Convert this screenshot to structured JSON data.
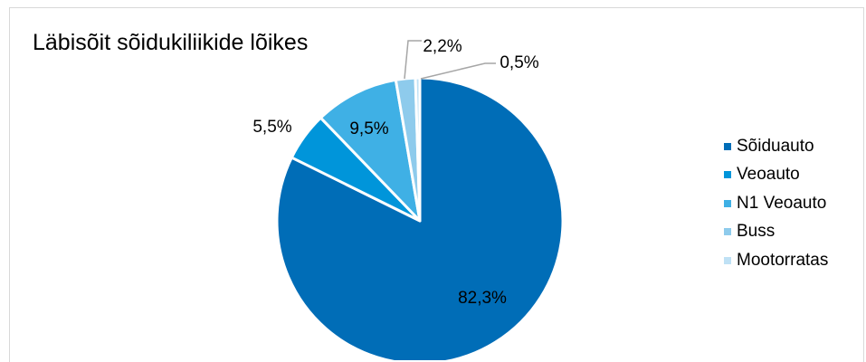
{
  "chart_data": {
    "type": "pie",
    "title": "Läbisõit sõidukiliikide lõikes",
    "categories": [
      "Sõiduauto",
      "Veoauto",
      "N1 Veoauto",
      "Buss",
      "Mootorratas"
    ],
    "values": [
      82.3,
      5.5,
      9.5,
      2.2,
      0.5
    ],
    "data_labels": [
      "82,3%",
      "5,5%",
      "9,5%",
      "2,2%",
      "0,5%"
    ],
    "colors": [
      "#006db7",
      "#0095da",
      "#3fb0e5",
      "#8ecbec",
      "#bfe1f5"
    ],
    "legend_position": "right",
    "start_angle_deg": 0,
    "direction": "clockwise"
  }
}
